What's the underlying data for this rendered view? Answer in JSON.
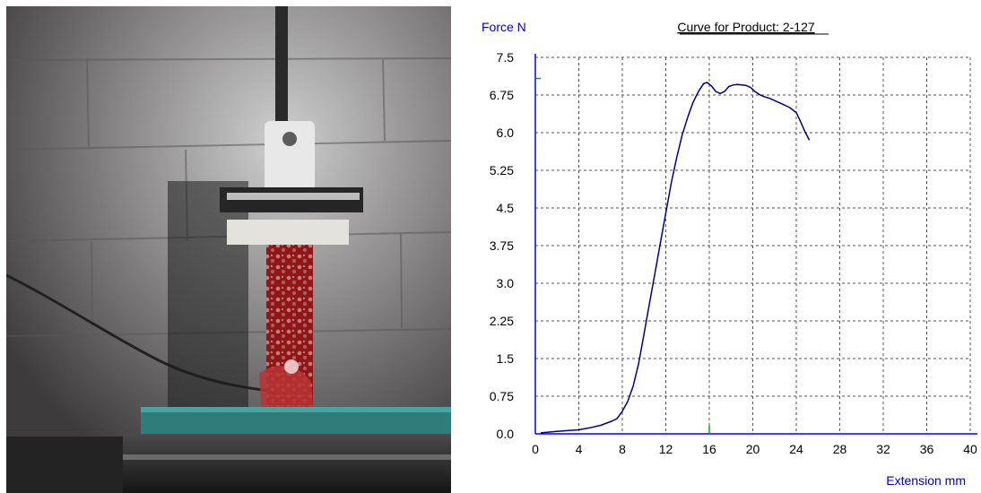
{
  "photo": {
    "description_icon": "tensile-test-specimen-photo"
  },
  "chart_data": {
    "type": "line",
    "title": "Curve for Product: 2-127",
    "ylabel": "Force N",
    "xlabel": "Extension mm",
    "xlim": [
      0,
      40
    ],
    "ylim": [
      0,
      7.5
    ],
    "x_ticks": [
      "0",
      "4",
      "8",
      "12",
      "16",
      "20",
      "24",
      "28",
      "32",
      "36",
      "40"
    ],
    "y_ticks": [
      "0.0",
      "0.75",
      "1.5",
      "2.25",
      "3.0",
      "3.75",
      "4.5",
      "5.25",
      "6.0",
      "6.75",
      "7.5"
    ],
    "grid": true,
    "colors": {
      "line": "#00008b",
      "axis": "#0000ff",
      "title": "#0000cc",
      "grid": "#555555",
      "marker": "#00aa00"
    },
    "series": [
      {
        "x": [
          0.5,
          2,
          4,
          5,
          6,
          7,
          7.5,
          8,
          8.5,
          9,
          9.5,
          10,
          10.5,
          11,
          11.5,
          12,
          12.5,
          13,
          13.5,
          14,
          14.5,
          15,
          15.5,
          15.8,
          16.2,
          16.6,
          17,
          17.4,
          17.8,
          18.2,
          18.6,
          19,
          19.4,
          19.8,
          20.2,
          20.6,
          21,
          21.6,
          22.2,
          22.8,
          23.4,
          24,
          24.4,
          24.8,
          25.2
        ],
        "y": [
          0.02,
          0.05,
          0.08,
          0.12,
          0.17,
          0.25,
          0.3,
          0.45,
          0.65,
          0.95,
          1.4,
          2.0,
          2.6,
          3.2,
          3.8,
          4.4,
          5.0,
          5.5,
          5.95,
          6.3,
          6.6,
          6.82,
          6.98,
          7.0,
          6.93,
          6.82,
          6.78,
          6.82,
          6.92,
          6.95,
          6.96,
          6.95,
          6.94,
          6.9,
          6.82,
          6.76,
          6.72,
          6.68,
          6.62,
          6.56,
          6.5,
          6.4,
          6.22,
          6.02,
          5.85
        ]
      }
    ]
  }
}
